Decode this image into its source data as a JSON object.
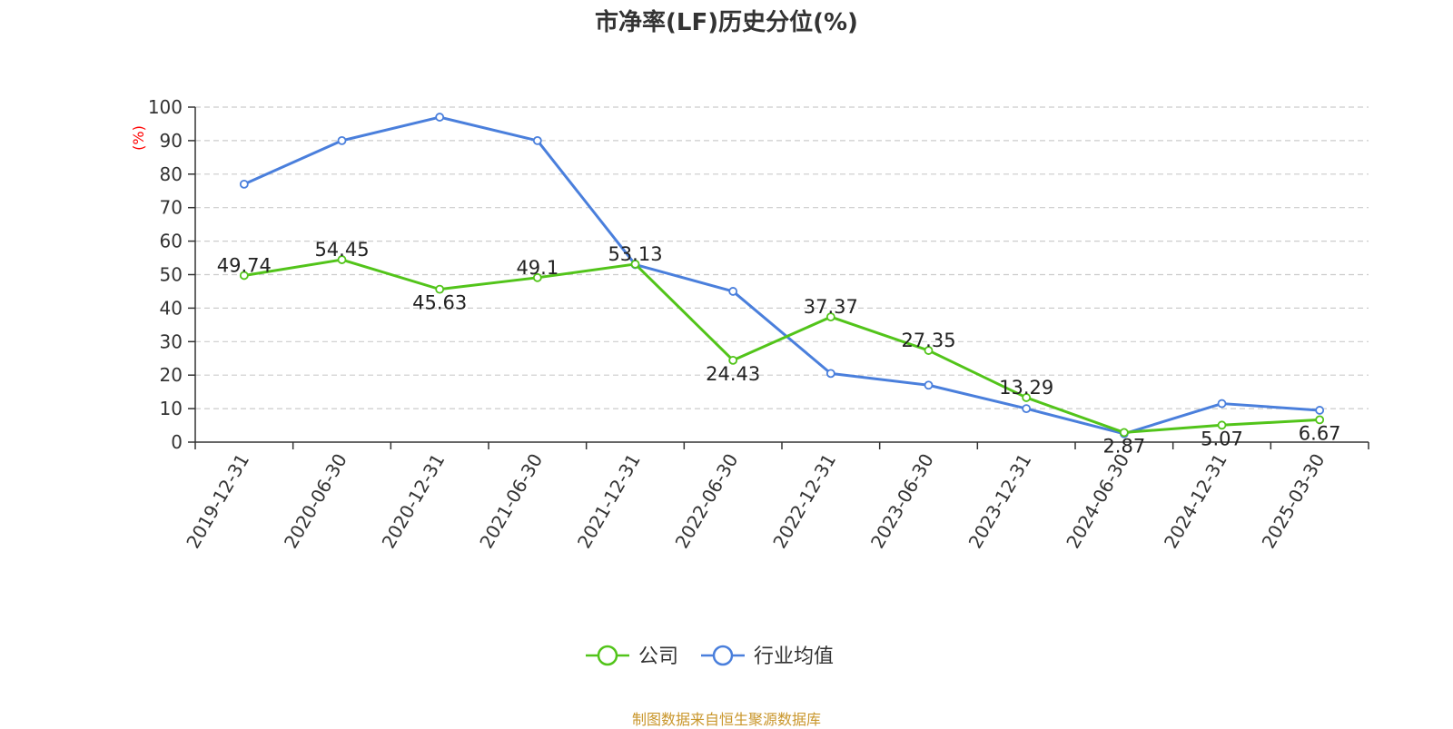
{
  "chart_data": {
    "type": "line",
    "title": "市净率(LF)历史分位(%)",
    "ylabel": "(%)",
    "xlabel": "",
    "categories": [
      "2019-12-31",
      "2020-06-30",
      "2020-12-31",
      "2021-06-30",
      "2021-12-31",
      "2022-06-30",
      "2022-12-31",
      "2023-06-30",
      "2023-12-31",
      "2024-06-30",
      "2024-12-31",
      "2025-03-30"
    ],
    "ylim": [
      0,
      100
    ],
    "yticks": [
      0,
      10,
      20,
      30,
      40,
      50,
      60,
      70,
      80,
      90,
      100
    ],
    "grid": true,
    "legend_position": "bottom",
    "series": [
      {
        "name": "公司",
        "color": "#52c41a",
        "values": [
          49.74,
          54.45,
          45.63,
          49.1,
          53.13,
          24.43,
          37.37,
          27.35,
          13.29,
          2.87,
          5.07,
          6.67
        ],
        "labels": [
          "49.74",
          "54.45",
          "45.63",
          "49.1",
          "53.13",
          "24.43",
          "37.37",
          "27.35",
          "13.29",
          "2.87",
          "5.07",
          "6.67"
        ]
      },
      {
        "name": "行业均值",
        "color": "#4a7fdc",
        "values": [
          77,
          90,
          97,
          90,
          53,
          45,
          20.5,
          17,
          10,
          2.5,
          11.5,
          9.5
        ]
      }
    ]
  },
  "footer": {
    "source": "制图数据来自恒生聚源数据库"
  }
}
